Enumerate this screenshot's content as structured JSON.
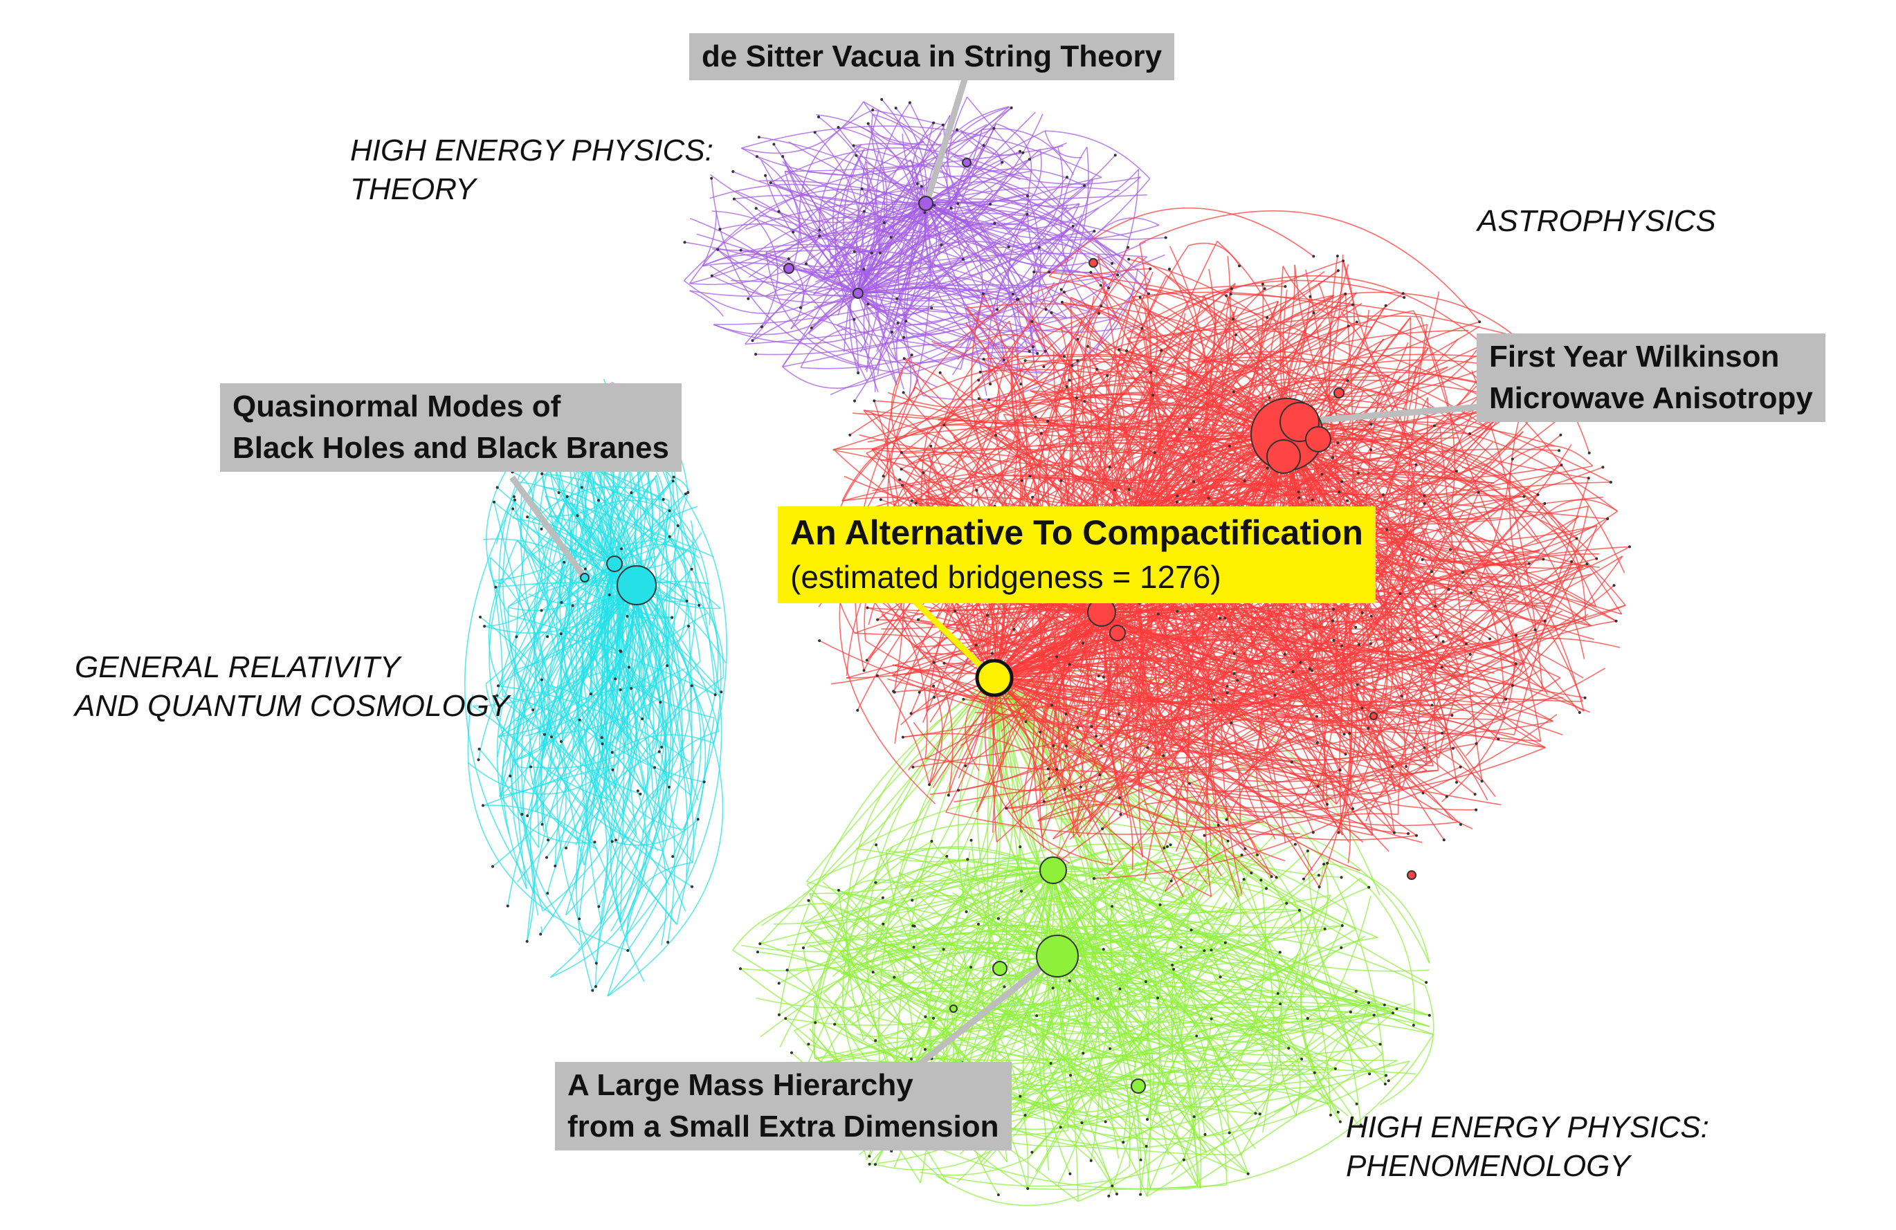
{
  "clusters": {
    "hep_theory": {
      "lines": [
        "HIGH ENERGY PHYSICS:",
        "THEORY"
      ],
      "color": "#a45ee5"
    },
    "astrophysics": {
      "lines": [
        "ASTROPHYSICS"
      ],
      "color": "#ff3b3b"
    },
    "gr_qc": {
      "lines": [
        "GENERAL RELATIVITY",
        "AND QUANTUM COSMOLOGY"
      ],
      "color": "#26e0e8"
    },
    "hep_ph": {
      "lines": [
        "HIGH ENERGY PHYSICS:",
        "PHENOMENOLOGY"
      ],
      "color": "#8ff03c"
    }
  },
  "callouts": {
    "desitter": {
      "lines": [
        "de Sitter Vacua in String Theory"
      ]
    },
    "quasinormal": {
      "lines": [
        "Quasinormal Modes of",
        "Black Holes and Black Branes"
      ]
    },
    "wmap": {
      "lines": [
        "First Year Wilkinson",
        "Microwave Anisotropy"
      ]
    },
    "compactification": {
      "title": "An Alternative To Compactification",
      "subtitle": "(estimated bridgeness = 1276)"
    },
    "mass_hierarchy": {
      "lines": [
        "A Large Mass Hierarchy",
        "from a Small Extra Dimension"
      ]
    }
  },
  "colors": {
    "callout_bg": "#bdbdbd",
    "highlight_bg": "#fff200",
    "leader": "#bdbdbd",
    "highlight_leader": "#fff200"
  }
}
